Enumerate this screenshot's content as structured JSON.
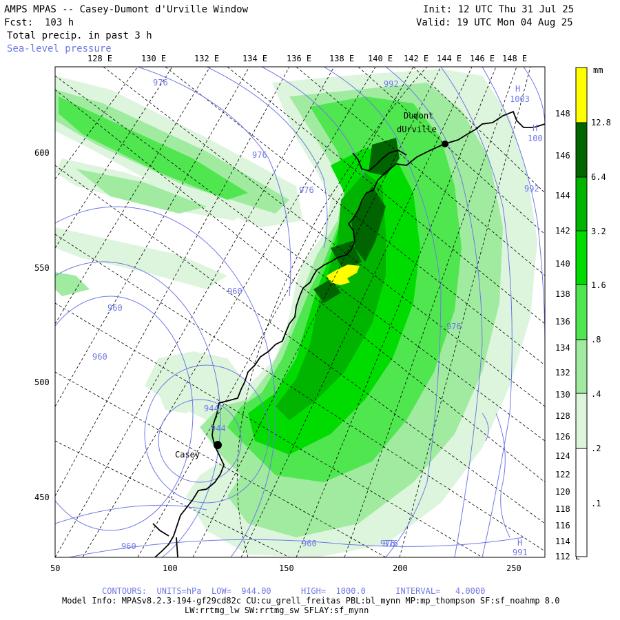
{
  "header": {
    "title": "AMPS MPAS -- Casey-Dumont d'Urville Window",
    "init": "Init: 12 UTC Thu 31 Jul 25",
    "fcst": "Fcst:  103 h",
    "valid": "Valid: 19 UTC Mon 04 Aug 25",
    "field": "Total precip. in past 3 h",
    "overlay": "Sea-level pressure"
  },
  "map": {
    "top_lon_labels": [
      "128 E",
      "130 E",
      "132 E",
      "134 E",
      "136 E",
      "138 E",
      "140 E",
      "142 E",
      "144 E",
      "146 E",
      "148 E"
    ],
    "right_lon_labels": [
      "148 E",
      "146 E",
      "144 E",
      "142 E",
      "140 E",
      "138 E",
      "136 E",
      "134 E",
      "132 E",
      "130 E",
      "128 E",
      "126 E",
      "124 E",
      "122 E",
      "120 E",
      "118 E",
      "116 E",
      "114 E",
      "112 E"
    ],
    "x_ticks": [
      "50",
      "100",
      "150",
      "200",
      "250"
    ],
    "y_ticks": [
      "600",
      "550",
      "500",
      "450"
    ],
    "places": [
      {
        "name": "Dumont dUrville",
        "line1": "Dumont",
        "line2": "dUrville"
      },
      {
        "name": "Casey",
        "line1": "Casey"
      }
    ],
    "contour_labels": [
      {
        "text": "976"
      },
      {
        "text": "976"
      },
      {
        "text": "976"
      },
      {
        "text": "992"
      },
      {
        "text": "992"
      },
      {
        "text": "960"
      },
      {
        "text": "960"
      },
      {
        "text": "960"
      },
      {
        "text": "976"
      },
      {
        "text": "960"
      },
      {
        "text": "976"
      },
      {
        "text": "944"
      },
      {
        "text": "944"
      },
      {
        "text": "960"
      },
      {
        "text": "976"
      }
    ],
    "highs": [
      {
        "label": "H",
        "value": "1003"
      },
      {
        "label": "H",
        "value": "100"
      },
      {
        "label": "H",
        "value": "991"
      }
    ]
  },
  "colorbar": {
    "unit": "mm",
    "levels": [
      "12.8",
      "6.4",
      "3.2",
      "1.6",
      ".8",
      ".4",
      ".2",
      ".1"
    ],
    "colors": [
      "#ffff00",
      "#006400",
      "#00b400",
      "#00dc00",
      "#50e650",
      "#a0eba0",
      "#dcf5dc",
      "#ffffff"
    ]
  },
  "footer": {
    "contours": "CONTOURS:  UNITS=hPa  LOW=  944.00      HIGH=  1000.0      INTERVAL=   4.0000",
    "model_info": "Model Info: MPASv8.2.3-194-gf29cd82c CU:cu_grell_freitas PBL:bl_mynn MP:mp_thompson SF:sf_noahmp 8.0",
    "model_info2": "LW:rrtmg_lw SW:rrtmg_sw SFLAY:sf_mynn"
  }
}
